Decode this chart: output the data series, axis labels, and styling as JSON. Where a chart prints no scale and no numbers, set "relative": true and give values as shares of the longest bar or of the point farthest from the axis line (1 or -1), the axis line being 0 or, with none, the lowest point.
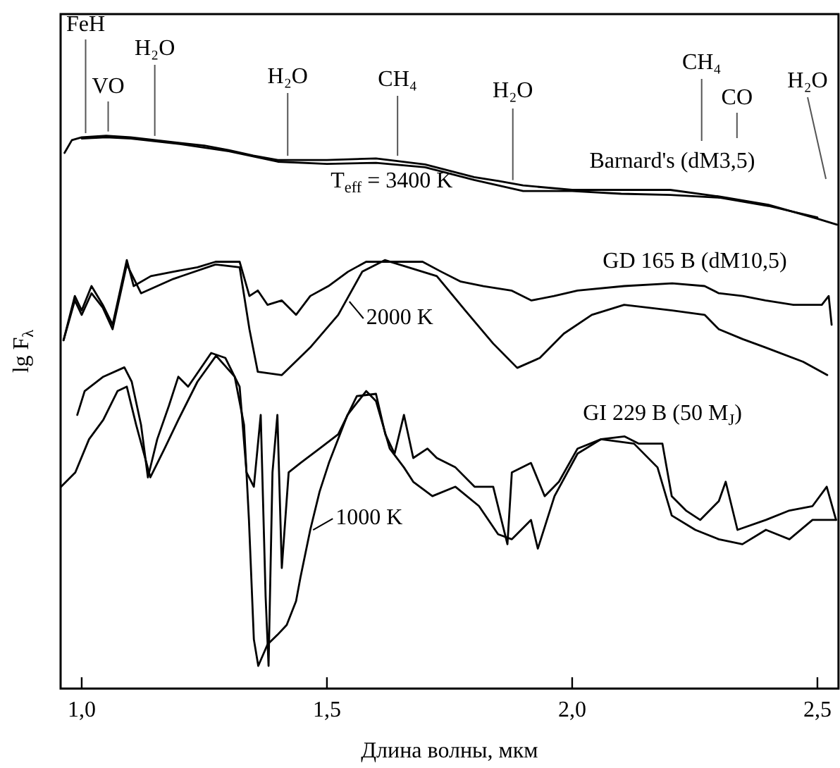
{
  "chart_data": {
    "type": "line",
    "xlabel": "Длина волны, мкм",
    "ylabel": "lg F$_{λ}$",
    "relative": true,
    "legend": false,
    "grid": false,
    "tick_labels": "x",
    "xlim": [
      0.957,
      2.543
    ],
    "xticks": [
      {
        "value": 1,
        "label": "1,0"
      },
      {
        "value": 1.5,
        "label": "1,5"
      },
      {
        "value": 2,
        "label": "2,0"
      },
      {
        "value": 2.5,
        "label": "2,5"
      }
    ],
    "annotations": [
      {
        "text": "FeH",
        "x": 1.008,
        "y": 0.997
      },
      {
        "text": "VO",
        "x": 1.054,
        "y": 1.0
      },
      {
        "text": "H₂O",
        "x": 1.149,
        "y": 0.992
      },
      {
        "text": "H₂O",
        "x": 1.42,
        "y": 0.956
      },
      {
        "text": "CH₄",
        "x": 1.644,
        "y": 0.956
      },
      {
        "text": "H₂O",
        "x": 1.879,
        "y": 0.912
      },
      "CH₄",
      "CO",
      "H₂O",
      {
        "text": "2000 K",
        "x": 1.54,
        "y": 0.7
      },
      {
        "text": "1000 K",
        "x": 1.466,
        "y": 0.287
      }
    ],
    "series": [
      {
        "name": "Barnard's (dM3,5)",
        "color": "#000000",
        "x": [
          0.965,
          0.98,
          1.0,
          1.05,
          1.1,
          1.15,
          1.2,
          1.25,
          1.3,
          1.35,
          1.4,
          1.45,
          1.5,
          1.6,
          1.7,
          1.8,
          1.85,
          1.9,
          2.0,
          2.1,
          2.2,
          2.3,
          2.4,
          2.5,
          2.54
        ],
        "values": [
          0.969,
          0.992,
          0.997,
          1.0,
          0.997,
          0.992,
          0.987,
          0.982,
          0.974,
          0.964,
          0.956,
          0.956,
          0.956,
          0.959,
          0.948,
          0.925,
          0.918,
          0.91,
          0.902,
          0.902,
          0.902,
          0.89,
          0.875,
          0.85,
          0.839
        ]
      },
      {
        "name": "T$_{eff}$ = 3400 K",
        "color": "#000000",
        "x": [
          1.0,
          1.05,
          1.1,
          1.2,
          1.3,
          1.4,
          1.5,
          1.6,
          1.7,
          1.8,
          1.9,
          2.0,
          2.1,
          2.2,
          2.3,
          2.4,
          2.5
        ],
        "values": [
          0.995,
          0.997,
          0.995,
          0.985,
          0.972,
          0.953,
          0.949,
          0.951,
          0.943,
          0.92,
          0.9,
          0.9,
          0.895,
          0.893,
          0.888,
          0.873,
          0.852
        ]
      },
      {
        "name": "GD 165 B (dM10,5)",
        "color": "#000000",
        "x": [
          0.963,
          0.986,
          1.0,
          1.02,
          1.043,
          1.063,
          1.092,
          1.106,
          1.141,
          1.187,
          1.236,
          1.273,
          1.322,
          1.342,
          1.359,
          1.379,
          1.408,
          1.437,
          1.466,
          1.503,
          1.543,
          1.58,
          1.638,
          1.695,
          1.733,
          1.773,
          1.819,
          1.876,
          1.917,
          1.963,
          2.011,
          2.106,
          2.204,
          2.27,
          2.299,
          2.348,
          2.394,
          2.451,
          2.509,
          2.523,
          2.529
        ],
        "values": [
          0.63,
          0.71,
          0.684,
          0.728,
          0.694,
          0.658,
          0.775,
          0.728,
          0.746,
          0.754,
          0.762,
          0.772,
          0.772,
          0.71,
          0.72,
          0.694,
          0.702,
          0.676,
          0.71,
          0.728,
          0.754,
          0.772,
          0.772,
          0.772,
          0.754,
          0.736,
          0.728,
          0.72,
          0.702,
          0.71,
          0.72,
          0.728,
          0.733,
          0.728,
          0.715,
          0.71,
          0.702,
          0.694,
          0.694,
          0.71,
          0.658
        ]
      },
      {
        "color": "#000000",
        "x": [
          0.963,
          0.986,
          1.0,
          1.02,
          1.043,
          1.063,
          1.092,
          1.121,
          1.187,
          1.273,
          1.322,
          1.342,
          1.359,
          1.408,
          1.466,
          1.523,
          1.572,
          1.618,
          1.724,
          1.782,
          1.839,
          1.888,
          1.934,
          1.983,
          2.04,
          2.106,
          2.204,
          2.27,
          2.299,
          2.348,
          2.394,
          2.471,
          2.52
        ],
        "values": [
          0.63,
          0.702,
          0.676,
          0.715,
          0.689,
          0.65,
          0.767,
          0.715,
          0.741,
          0.767,
          0.762,
          0.65,
          0.573,
          0.567,
          0.617,
          0.676,
          0.754,
          0.775,
          0.746,
          0.684,
          0.624,
          0.58,
          0.598,
          0.642,
          0.676,
          0.694,
          0.684,
          0.676,
          0.65,
          0.632,
          0.617,
          0.591,
          0.567
        ]
      },
      {
        "name": "GI 229 B (50 M$_{J}$)",
        "color": "#000000",
        "x": [
          0.991,
          1.006,
          1.044,
          1.087,
          1.102,
          1.121,
          1.135,
          1.154,
          1.178,
          1.197,
          1.217,
          1.264,
          1.293,
          1.322,
          1.336,
          1.351,
          1.365,
          1.375,
          1.381,
          1.389,
          1.399,
          1.408,
          1.422,
          1.446,
          1.485,
          1.523,
          1.561,
          1.6,
          1.619,
          1.638,
          1.657,
          1.676,
          1.705,
          1.724,
          1.762,
          1.801,
          1.839,
          1.868,
          1.877,
          1.916,
          1.944,
          1.973,
          2.011,
          2.059,
          2.107,
          2.136,
          2.184,
          2.203,
          2.232,
          2.261,
          2.299,
          2.313,
          2.337,
          2.395,
          2.443,
          2.49,
          2.519,
          2.538
        ],
        "values": [
          0.495,
          0.538,
          0.564,
          0.581,
          0.555,
          0.477,
          0.382,
          0.451,
          0.512,
          0.564,
          0.546,
          0.607,
          0.598,
          0.546,
          0.391,
          0.365,
          0.495,
          0.166,
          0.041,
          0.391,
          0.495,
          0.218,
          0.391,
          0.408,
          0.434,
          0.46,
          0.529,
          0.533,
          0.46,
          0.425,
          0.495,
          0.417,
          0.434,
          0.417,
          0.4,
          0.365,
          0.365,
          0.261,
          0.391,
          0.408,
          0.348,
          0.374,
          0.434,
          0.451,
          0.456,
          0.443,
          0.443,
          0.348,
          0.322,
          0.305,
          0.339,
          0.374,
          0.287,
          0.305,
          0.322,
          0.33,
          0.365,
          0.305
        ]
      },
      {
        "color": "#000000",
        "x": [
          0.958,
          0.987,
          1.015,
          1.044,
          1.073,
          1.092,
          1.111,
          1.14,
          1.169,
          1.197,
          1.236,
          1.274,
          1.312,
          1.331,
          1.341,
          1.351,
          1.36,
          1.379,
          1.399,
          1.418,
          1.437,
          1.446,
          1.466,
          1.485,
          1.504,
          1.542,
          1.58,
          1.6,
          1.628,
          1.657,
          1.676,
          1.715,
          1.762,
          1.81,
          1.849,
          1.877,
          1.916,
          1.93,
          1.964,
          2.011,
          2.059,
          2.126,
          2.174,
          2.203,
          2.251,
          2.299,
          2.347,
          2.395,
          2.443,
          2.49,
          2.538
        ],
        "values": [
          0.365,
          0.391,
          0.451,
          0.486,
          0.538,
          0.546,
          0.477,
          0.382,
          0.434,
          0.486,
          0.555,
          0.602,
          0.564,
          0.477,
          0.305,
          0.089,
          0.041,
          0.08,
          0.097,
          0.115,
          0.158,
          0.201,
          0.287,
          0.356,
          0.408,
          0.495,
          0.538,
          0.52,
          0.434,
          0.4,
          0.374,
          0.348,
          0.365,
          0.33,
          0.279,
          0.27,
          0.305,
          0.253,
          0.348,
          0.425,
          0.451,
          0.443,
          0.4,
          0.313,
          0.287,
          0.27,
          0.261,
          0.287,
          0.27,
          0.305,
          0.305
        ]
      }
    ]
  }
}
